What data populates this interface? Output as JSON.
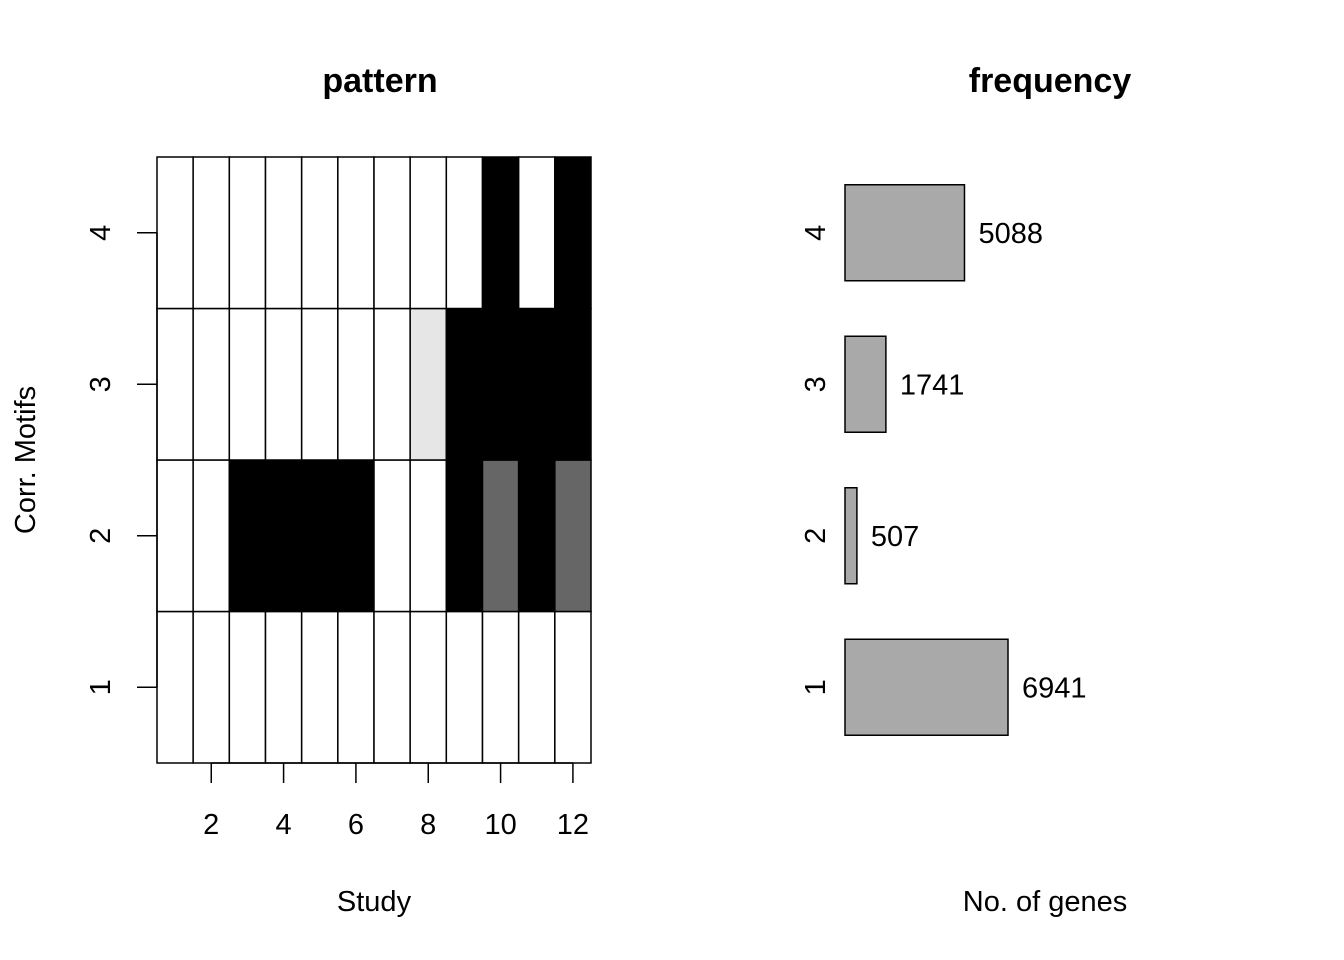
{
  "chart_data": [
    {
      "type": "heatmap",
      "title": "pattern",
      "xlabel": "Study",
      "ylabel": "Corr. Motifs",
      "x_ticks": [
        "2",
        "4",
        "6",
        "8",
        "10",
        "12"
      ],
      "y_ticks": [
        "1",
        "2",
        "3",
        "4"
      ],
      "columns": [
        1,
        2,
        3,
        4,
        5,
        6,
        7,
        8,
        9,
        10,
        11,
        12
      ],
      "rows": [
        1,
        2,
        3,
        4
      ],
      "colors": {
        "0": "#ffffff",
        "0.1": "#e6e6e6",
        "0.6": "#666666",
        "1": "#000000"
      },
      "values": [
        [
          0,
          0,
          0,
          0,
          0,
          0,
          0,
          0,
          0,
          0,
          0,
          0
        ],
        [
          0,
          0,
          1,
          1,
          1,
          1,
          0,
          0,
          1,
          0.6,
          1,
          0.6
        ],
        [
          0,
          0,
          0,
          0,
          0,
          0,
          0,
          0.1,
          1,
          1,
          1,
          1
        ],
        [
          0,
          0,
          0,
          0,
          0,
          0,
          0,
          0,
          0,
          1,
          0,
          1
        ]
      ]
    },
    {
      "type": "bar",
      "orientation": "horizontal",
      "title": "frequency",
      "xlabel": "No. of genes",
      "categories": [
        "1",
        "2",
        "3",
        "4"
      ],
      "values": [
        6941,
        507,
        1741,
        5088
      ],
      "value_labels": [
        "6941",
        "507",
        "1741",
        "5088"
      ],
      "bar_color": "#a9a9a9",
      "xlim": [
        0,
        6941
      ]
    }
  ]
}
